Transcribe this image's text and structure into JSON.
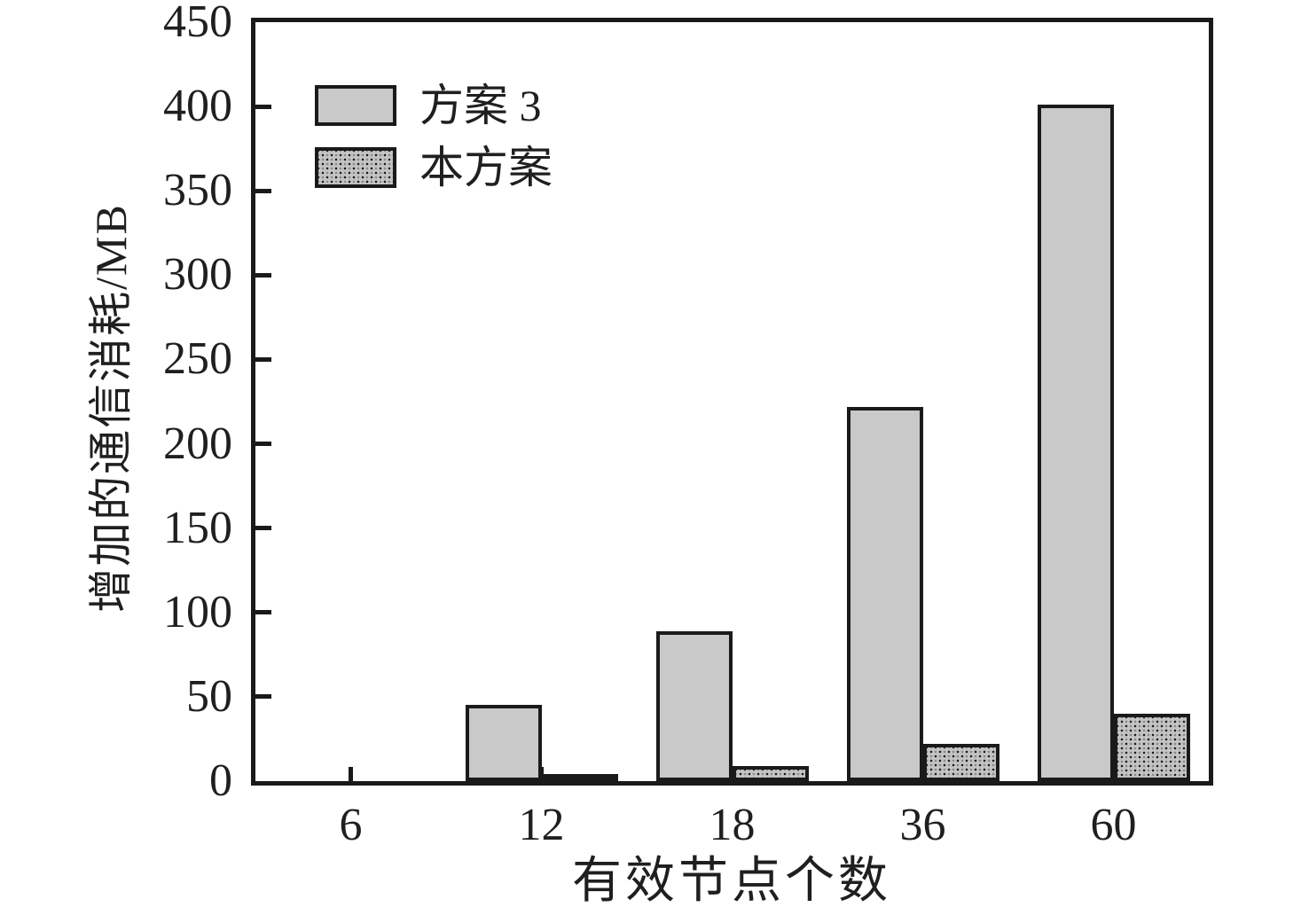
{
  "figure": {
    "background": "#ffffff",
    "axis_color": "#1a1a1a",
    "text_color": "#1f1f1f"
  },
  "chart_data": {
    "type": "bar",
    "title": "",
    "xlabel": "有效节点个数",
    "ylabel": "增加的通信消耗/MB",
    "categories": [
      "6",
      "12",
      "18",
      "36",
      "60"
    ],
    "series": [
      {
        "name": "方案 3",
        "pattern": "solid",
        "fill": "#c9c9c9",
        "values": [
          0,
          45,
          89,
          222,
          401
        ]
      },
      {
        "name": "本方案",
        "pattern": "dotted",
        "fill": "#c4c4c4",
        "values": [
          0,
          4,
          9,
          22,
          40
        ]
      }
    ],
    "ylim": [
      0,
      450
    ],
    "ytick_step": 50,
    "yticks": [
      "0",
      "50",
      "100",
      "150",
      "200",
      "250",
      "300",
      "350",
      "400",
      "450"
    ],
    "grid": false,
    "legend_position": "top-left"
  }
}
